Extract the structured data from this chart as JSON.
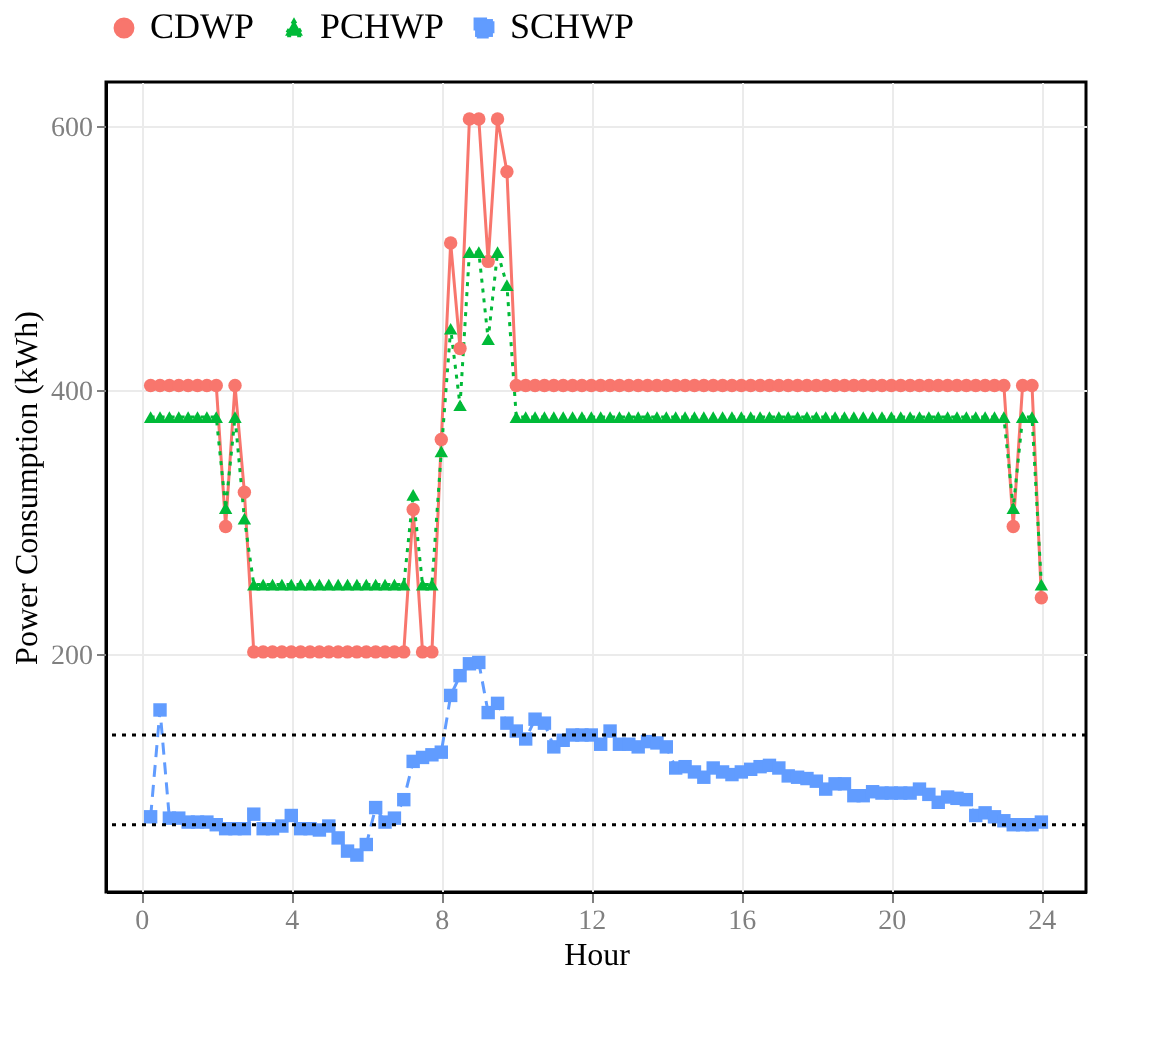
{
  "chart_data": {
    "type": "line",
    "xlabel": "Hour",
    "ylabel": "Power Consumption (kWh)",
    "x": [
      0.25,
      0.5,
      0.75,
      1,
      1.25,
      1.5,
      1.75,
      2,
      2.25,
      2.5,
      2.75,
      3,
      3.25,
      3.5,
      3.75,
      4,
      4.25,
      4.5,
      4.75,
      5,
      5.25,
      5.5,
      5.75,
      6,
      6.25,
      6.5,
      6.75,
      7,
      7.25,
      7.5,
      7.75,
      8,
      8.25,
      8.5,
      8.75,
      9,
      9.25,
      9.5,
      9.75,
      10,
      10.25,
      10.5,
      10.75,
      11,
      11.25,
      11.5,
      11.75,
      12,
      12.25,
      12.5,
      12.75,
      13,
      13.25,
      13.5,
      13.75,
      14,
      14.25,
      14.5,
      14.75,
      15,
      15.25,
      15.5,
      15.75,
      16,
      16.25,
      16.5,
      16.75,
      17,
      17.25,
      17.5,
      17.75,
      18,
      18.25,
      18.5,
      18.75,
      19,
      19.25,
      19.5,
      19.75,
      20,
      20.25,
      20.5,
      20.75,
      21,
      21.25,
      21.5,
      21.75,
      22,
      22.25,
      22.5,
      22.75,
      23,
      23.25,
      23.5,
      23.75,
      24
    ],
    "series": [
      {
        "name": "CDWP",
        "color": "#f8766d",
        "marker": "circle",
        "line_style": "solid",
        "values": [
          404,
          404,
          404,
          404,
          404,
          404,
          404,
          404,
          297,
          404,
          323,
          202,
          202,
          202,
          202,
          202,
          202,
          202,
          202,
          202,
          202,
          202,
          202,
          202,
          202,
          202,
          202,
          202,
          310,
          202,
          202,
          363,
          512,
          432,
          606,
          606,
          498,
          606,
          566,
          404,
          404,
          404,
          404,
          404,
          404,
          404,
          404,
          404,
          404,
          404,
          404,
          404,
          404,
          404,
          404,
          404,
          404,
          404,
          404,
          404,
          404,
          404,
          404,
          404,
          404,
          404,
          404,
          404,
          404,
          404,
          404,
          404,
          404,
          404,
          404,
          404,
          404,
          404,
          404,
          404,
          404,
          404,
          404,
          404,
          404,
          404,
          404,
          404,
          404,
          404,
          404,
          404,
          297,
          404,
          404,
          243
        ]
      },
      {
        "name": "PCHWP",
        "color": "#00ba38",
        "marker": "triangle",
        "line_style": "dotted",
        "values": [
          380,
          380,
          380,
          380,
          380,
          380,
          380,
          380,
          311,
          380,
          303,
          253,
          253,
          253,
          253,
          253,
          253,
          253,
          253,
          253,
          253,
          253,
          253,
          253,
          253,
          253,
          253,
          253,
          321,
          253,
          253,
          354,
          447,
          389,
          505,
          505,
          439,
          505,
          480,
          380,
          380,
          380,
          380,
          380,
          380,
          380,
          380,
          380,
          380,
          380,
          380,
          380,
          380,
          380,
          380,
          380,
          380,
          380,
          380,
          380,
          380,
          380,
          380,
          380,
          380,
          380,
          380,
          380,
          380,
          380,
          380,
          380,
          380,
          380,
          380,
          380,
          380,
          380,
          380,
          380,
          380,
          380,
          380,
          380,
          380,
          380,
          380,
          380,
          380,
          380,
          380,
          380,
          311,
          380,
          380,
          253
        ]
      },
      {
        "name": "SCHWP",
        "color": "#619cff",
        "marker": "square",
        "line_style": "dashed",
        "values": [
          77,
          158,
          76,
          76,
          73,
          73,
          73,
          71,
          68,
          68,
          68,
          79,
          68,
          68,
          70,
          78,
          68,
          68,
          67,
          70,
          61,
          51,
          48,
          56,
          84,
          73,
          76,
          90,
          119,
          122,
          124,
          126,
          169,
          184,
          193,
          194,
          156,
          163,
          148,
          142,
          136,
          151,
          148,
          130,
          135,
          139,
          139,
          139,
          132,
          142,
          132,
          132,
          130,
          134,
          133,
          130,
          114,
          115,
          111,
          107,
          114,
          111,
          109,
          111,
          113,
          115,
          116,
          114,
          108,
          107,
          106,
          104,
          98,
          102,
          102,
          93,
          93,
          96,
          95,
          95,
          95,
          95,
          98,
          94,
          88,
          92,
          91,
          90,
          78,
          80,
          77,
          74,
          71,
          71,
          71,
          73
        ]
      }
    ],
    "xlim": [
      -0.94,
      25.19
    ],
    "xticks": [
      0,
      4,
      8,
      12,
      16,
      20,
      24
    ],
    "ylim": [
      20,
      634
    ],
    "yticks": [
      200,
      400,
      600
    ],
    "ref_lines": [
      {
        "axis": "y",
        "value": 139,
        "color": "#000000",
        "line_style": "dotted"
      },
      {
        "axis": "y",
        "value": 71,
        "color": "#000000",
        "line_style": "dotted"
      }
    ],
    "grid": true,
    "legend": "top"
  }
}
